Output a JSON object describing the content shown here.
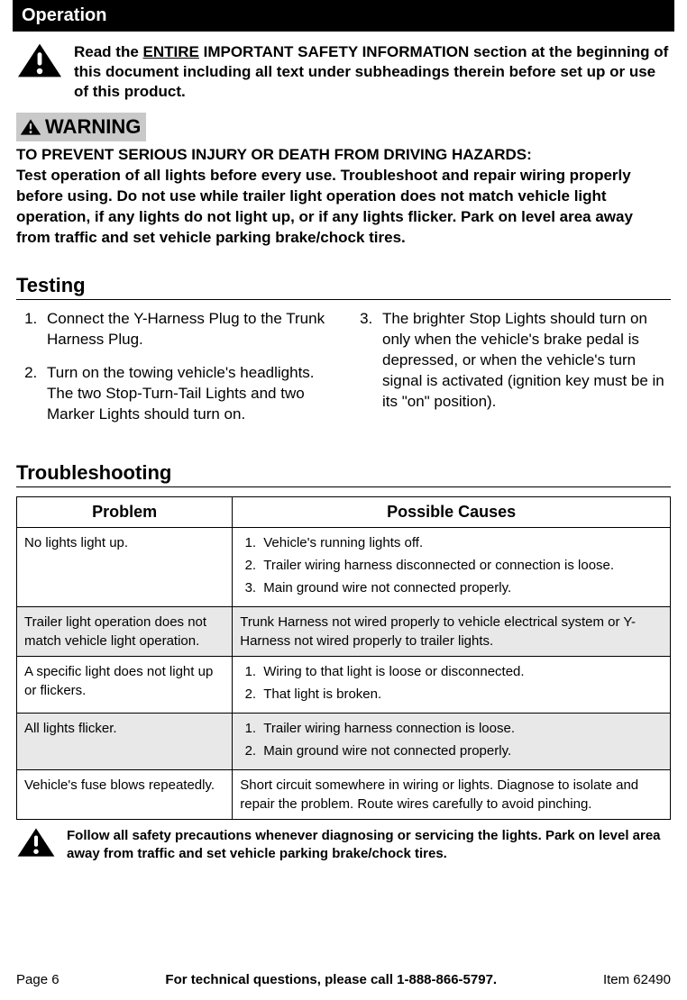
{
  "section_title": "Operation",
  "safety_intro_pre": "Read the ",
  "safety_intro_underlined": "ENTIRE",
  "safety_intro_post": " IMPORTANT SAFETY INFORMATION section at the beginning of this document including all text under subheadings therein before set up or use of this product.",
  "warning_label": "WARNING",
  "warning_heading": "TO PREVENT SERIOUS INJURY OR DEATH FROM DRIVING HAZARDS:",
  "warning_body": "Test operation of all lights before every use.  Troubleshoot and repair wiring properly before using.  Do not use while trailer light operation does not match vehicle light operation, if any lights do not light up, or if any lights flicker. Park on level area away from traffic and set vehicle parking brake/chock tires.",
  "testing_title": "Testing",
  "testing_steps_left": [
    "Connect the Y-Harness Plug to the Trunk Harness Plug.",
    "Turn on the towing vehicle's headlights.  The two Stop-Turn-Tail Lights and two Marker Lights should turn on."
  ],
  "testing_steps_right": [
    "The brighter Stop Lights should turn on only when the vehicle's brake pedal is depressed, or when the vehicle's turn signal is activated (ignition key must be in its \"on\" position)."
  ],
  "troubleshooting_title": "Troubleshooting",
  "table": {
    "col_problem": "Problem",
    "col_causes": "Possible Causes",
    "rows": [
      {
        "shaded": false,
        "problem": "No lights light up.",
        "causes_list": [
          "Vehicle's running lights off.",
          "Trailer wiring harness disconnected or connection is loose.",
          "Main ground wire not connected properly."
        ]
      },
      {
        "shaded": true,
        "problem": "Trailer light operation does not match vehicle light operation.",
        "causes_text": "Trunk Harness not wired properly to vehicle electrical system or Y-Harness not wired properly to trailer lights."
      },
      {
        "shaded": false,
        "problem": "A specific light does not light up or flickers.",
        "causes_list": [
          "Wiring to that light is loose or disconnected.",
          "That light is broken."
        ]
      },
      {
        "shaded": true,
        "problem": "All lights flicker.",
        "causes_list": [
          "Trailer wiring harness connection is loose.",
          "Main ground wire not connected properly."
        ]
      },
      {
        "shaded": false,
        "problem": "Vehicle's fuse blows repeatedly.",
        "causes_text": "Short circuit somewhere in wiring or lights.  Diagnose to isolate and repair the problem.  Route wires carefully to avoid pinching."
      }
    ]
  },
  "follow_text": "Follow all safety precautions whenever diagnosing or servicing the lights. Park on level area away from traffic and set vehicle parking brake/chock tires.",
  "footer": {
    "page": "Page 6",
    "mid": "For technical questions, please call 1-888-866-5797.",
    "item": "Item 62490"
  },
  "colors": {
    "bar_bg": "#000000",
    "bar_fg": "#ffffff",
    "badge_bg": "#c9c9c9",
    "shade_bg": "#e8e8e8",
    "border": "#000000"
  }
}
